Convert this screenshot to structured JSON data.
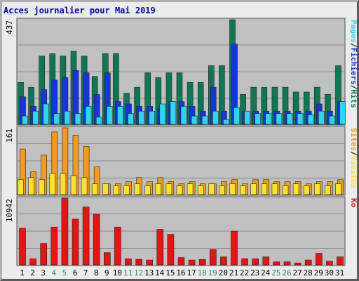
{
  "chart_data": {
    "title": "Acces journalier pour Mai 2019",
    "type": "bar",
    "days": [
      "1",
      "2",
      "3",
      "4",
      "5",
      "6",
      "7",
      "8",
      "9",
      "10",
      "11",
      "12",
      "13",
      "14",
      "15",
      "16",
      "17",
      "18",
      "19",
      "20",
      "21",
      "22",
      "23",
      "24",
      "25",
      "26",
      "27",
      "28",
      "29",
      "30",
      "31"
    ],
    "weekend_days": [
      "4",
      "5",
      "11",
      "12",
      "18",
      "19",
      "25",
      "26"
    ],
    "top_panel": {
      "max_label": "437",
      "ymax": 437,
      "legend": [
        "Pages",
        "/",
        "Fichiers",
        "/",
        "Hits"
      ],
      "colors": {
        "hits": "#0b7a52",
        "files": "#1633e6",
        "pages": "#2ad8f5"
      },
      "series": {
        "hits": [
          175,
          155,
          285,
          295,
          285,
          305,
          285,
          200,
          295,
          295,
          130,
          155,
          215,
          195,
          215,
          215,
          175,
          175,
          245,
          245,
          437,
          125,
          155,
          155,
          155,
          155,
          135,
          135,
          155,
          125,
          245
        ],
        "files": [
          115,
          75,
          145,
          185,
          195,
          225,
          215,
          125,
          215,
          95,
          85,
          75,
          75,
          65,
          95,
          95,
          75,
          55,
          155,
          55,
          335,
          55,
          55,
          55,
          55,
          55,
          55,
          55,
          85,
          55,
          95
        ],
        "pages": [
          35,
          55,
          85,
          45,
          55,
          45,
          75,
          30,
          75,
          75,
          45,
          55,
          55,
          85,
          95,
          75,
          35,
          35,
          55,
          20,
          70,
          55,
          45,
          45,
          45,
          45,
          45,
          40,
          55,
          35,
          95
        ]
      }
    },
    "middle_panel": {
      "max_label": "161",
      "ymax": 161,
      "legend": [
        "Sites",
        "/",
        "Visites"
      ],
      "colors": {
        "visits": "#f59a1a",
        "sites": "#ffe326"
      },
      "series": {
        "visits": [
          110,
          55,
          95,
          151,
          161,
          143,
          116,
          67,
          26,
          26,
          31,
          41,
          31,
          41,
          31,
          26,
          31,
          26,
          26,
          31,
          36,
          26,
          36,
          36,
          31,
          31,
          31,
          26,
          31,
          31,
          36
        ],
        "sites": [
          36,
          41,
          36,
          51,
          51,
          46,
          41,
          26,
          26,
          21,
          21,
          26,
          21,
          26,
          26,
          21,
          26,
          21,
          26,
          21,
          26,
          21,
          26,
          26,
          26,
          21,
          26,
          21,
          26,
          21,
          26
        ]
      }
    },
    "bottom_panel": {
      "max_label": "10942",
      "ymax": 10942,
      "legend": [
        "Ko"
      ],
      "colors": {
        "kb": "#ee1111"
      },
      "series": {
        "kb": [
          6000,
          1000,
          3500,
          6200,
          10942,
          7500,
          9500,
          8300,
          2000,
          6200,
          1000,
          900,
          800,
          5800,
          5000,
          1200,
          800,
          900,
          2500,
          1300,
          5500,
          1000,
          1000,
          1300,
          500,
          500,
          300,
          800,
          1900,
          600,
          1300
        ]
      }
    }
  }
}
